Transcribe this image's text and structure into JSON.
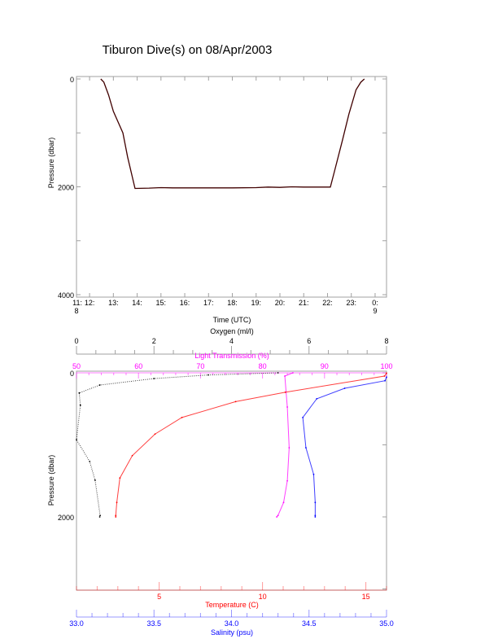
{
  "title": "Tiburon Dive(s) on 08/Apr/2003",
  "colors": {
    "oxygen": "#000000",
    "transmission": "#ff00ff",
    "temperature": "#ff0000",
    "salinity": "#0000ff",
    "frame": "#a0a0a0"
  },
  "chart_data": [
    {
      "type": "line",
      "xlabel": "Time (UTC)",
      "ylabel": "Pressure (dbar)",
      "xlim": [
        11.45,
        24.48
      ],
      "ylim": [
        4000,
        0
      ],
      "y_ticks": [
        "0",
        "2000",
        "4000"
      ],
      "x_ticks": [
        {
          "value": 11.45,
          "label": "11:",
          "sub": "8"
        },
        {
          "value": 12,
          "label": "12:"
        },
        {
          "value": 13,
          "label": "13:"
        },
        {
          "value": 14,
          "label": "14:"
        },
        {
          "value": 15,
          "label": "15:"
        },
        {
          "value": 16,
          "label": "16:"
        },
        {
          "value": 17,
          "label": "17:"
        },
        {
          "value": 18,
          "label": "18:"
        },
        {
          "value": 19,
          "label": "19:"
        },
        {
          "value": 20,
          "label": "20:"
        },
        {
          "value": 21,
          "label": "21:"
        },
        {
          "value": 22,
          "label": "22:"
        },
        {
          "value": 23,
          "label": "23:"
        },
        {
          "value": 24,
          "label": "0:",
          "sub": "9"
        }
      ],
      "series": [
        {
          "x": [
            12.47,
            12.6,
            12.8,
            13.0,
            13.2,
            13.4,
            13.6,
            13.91,
            14.5,
            15.0,
            15.5,
            16.0,
            17.0,
            18.0,
            19.0,
            19.5,
            20.0,
            20.5,
            21.0,
            21.5,
            22.12,
            22.3,
            22.62,
            22.9,
            23.2,
            23.4,
            23.55
          ],
          "y": [
            0,
            60,
            300,
            600,
            800,
            1000,
            1450,
            2030,
            2025,
            2015,
            2020,
            2020,
            2020,
            2020,
            2015,
            2005,
            2010,
            2000,
            2005,
            2005,
            2005,
            1700,
            1150,
            650,
            200,
            60,
            0
          ]
        }
      ]
    },
    {
      "type": "scatter",
      "ylabel": "Pressure (dbar)",
      "ylim": [
        3000,
        0
      ],
      "y_ticks": [
        "0",
        "2000"
      ],
      "axes": {
        "oxygen": {
          "label": "Oxygen (ml/l)",
          "range": [
            0,
            8
          ],
          "ticks": [
            "0",
            "2",
            "4",
            "6",
            "8"
          ]
        },
        "transmission": {
          "label": "Light Transmission (%)",
          "range": [
            50,
            100
          ],
          "ticks": [
            "50",
            "60",
            "70",
            "80",
            "90",
            "100"
          ]
        },
        "temperature": {
          "label": "Temperature (C)",
          "range": [
            1,
            16
          ],
          "ticks": [
            "5",
            "10",
            "15"
          ]
        },
        "salinity": {
          "label": "Salinity (psu)",
          "range": [
            33.0,
            35.0
          ],
          "ticks": [
            "33.0",
            "33.5",
            "34.0",
            "34.5",
            "35.0"
          ]
        }
      },
      "series": [
        {
          "axis": "oxygen",
          "p": [
            0,
            30,
            80,
            170,
            280,
            450,
            930,
            1230,
            1490,
            1980,
            2000
          ],
          "v": [
            5.2,
            3.4,
            2.0,
            0.6,
            0.07,
            0.1,
            0.0,
            0.34,
            0.48,
            0.61,
            0.6
          ]
        },
        {
          "axis": "transmission",
          "p": [
            0,
            45,
            475,
            1040,
            1500,
            1800,
            1980,
            2000
          ],
          "v": [
            84.9,
            83.6,
            84.0,
            84.3,
            84.0,
            83.4,
            82.5,
            82.3
          ]
        },
        {
          "axis": "temperature",
          "p": [
            5,
            45,
            270,
            400,
            620,
            850,
            1150,
            1460,
            1800,
            1980,
            2000
          ],
          "v": [
            16.0,
            15.9,
            11.1,
            8.7,
            6.1,
            4.8,
            3.7,
            3.1,
            2.95,
            2.9,
            2.9
          ]
        },
        {
          "axis": "salinity",
          "p": [
            60,
            110,
            215,
            360,
            620,
            1040,
            1410,
            1800,
            1980,
            2000
          ],
          "v": [
            35.0,
            34.99,
            34.73,
            34.55,
            34.46,
            34.48,
            34.53,
            34.54,
            34.54,
            34.54
          ]
        }
      ]
    }
  ]
}
